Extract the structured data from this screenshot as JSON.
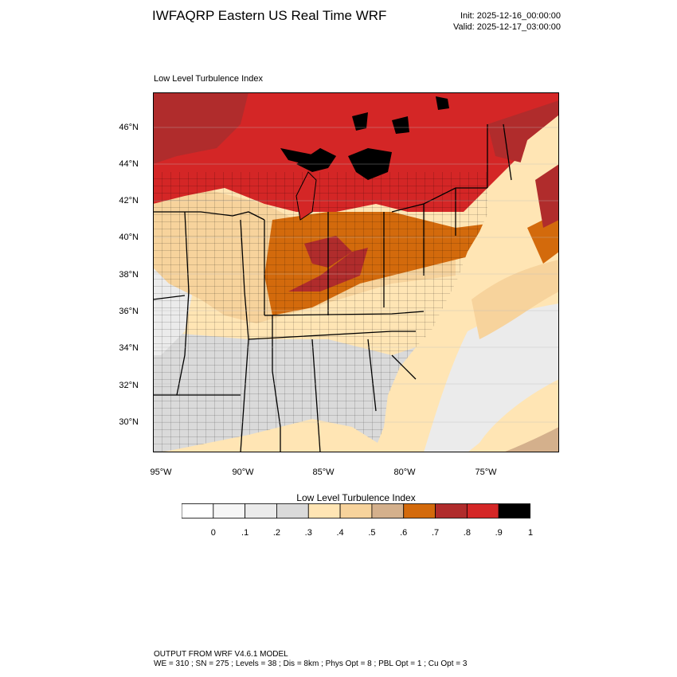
{
  "header": {
    "title": "IWFAQRP Eastern US Real Time WRF",
    "init": "Init: 2025-12-16_00:00:00",
    "valid": "Valid: 2025-12-17_03:00:00"
  },
  "map": {
    "subtitle": "Low Level Turbulence Index",
    "lat_labels": [
      "46°N",
      "44°N",
      "42°N",
      "40°N",
      "38°N",
      "36°N",
      "34°N",
      "32°N",
      "30°N"
    ],
    "lon_labels": [
      "95°W",
      "90°W",
      "85°W",
      "80°W",
      "75°W"
    ]
  },
  "colorbar": {
    "title": "Low Level Turbulence Index",
    "ticks": [
      "0",
      ".1",
      ".2",
      ".3",
      ".4",
      ".5",
      ".6",
      ".7",
      ".8",
      ".9",
      "1"
    ],
    "colors": [
      "#ffffff",
      "#f6f6f6",
      "#ebebeb",
      "#dadada",
      "#ffe5b4",
      "#f7d39c",
      "#d4b08c",
      "#d36a0c",
      "#b02c2c",
      "#d42626",
      "#000000"
    ]
  },
  "footer": {
    "line1": "OUTPUT FROM WRF V4.6.1 MODEL",
    "line2": "WE = 310 ; SN = 275 ; Levels = 38 ; Dis = 8km ; Phys Opt = 8 ; PBL Opt = 1 ; Cu Opt = 3"
  }
}
